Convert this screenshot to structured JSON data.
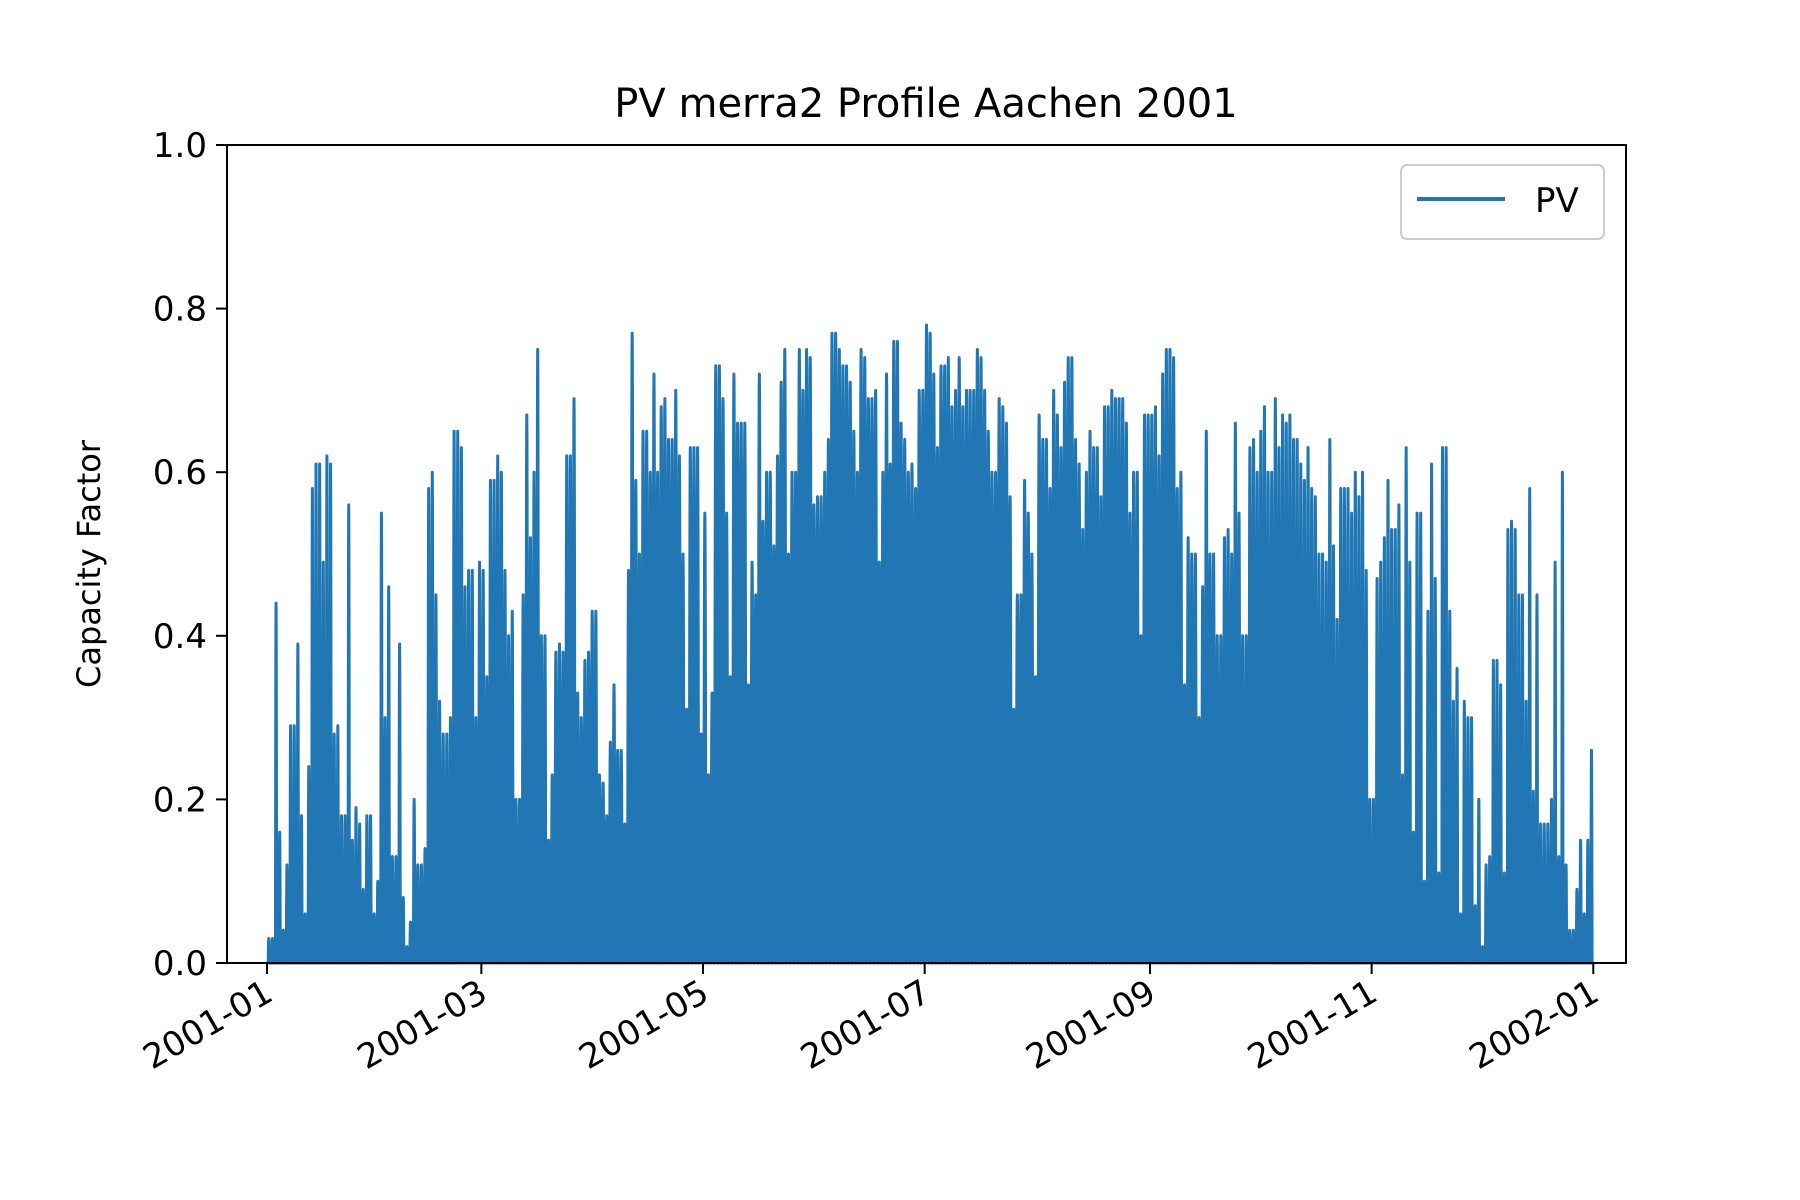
{
  "chart_data": {
    "type": "line",
    "title": "PV merra2 Profile Aachen 2001",
    "xlabel": "",
    "ylabel": "Capacity Factor",
    "ylim": [
      0,
      1.0
    ],
    "xlim": [
      "2000-12-21",
      "2002-01-10"
    ],
    "yticks": [
      "0.0",
      "0.2",
      "0.4",
      "0.6",
      "0.8",
      "1.0"
    ],
    "xticks": [
      "2001-01",
      "2001-03",
      "2001-05",
      "2001-07",
      "2001-09",
      "2001-11",
      "2002-01"
    ],
    "grid": false,
    "legend_position": "top-right",
    "series": [
      {
        "name": "PV",
        "color": "#2077b4",
        "description_of_values": "hourly capacity factor; daily peak values listed, zero at night",
        "daily_peaks": [
          0.03,
          0.44,
          0.16,
          0.04,
          0.12,
          0.29,
          0.39,
          0.18,
          0.06,
          0.24,
          0.58,
          0.61,
          0.49,
          0.62,
          0.61,
          0.28,
          0.29,
          0.18,
          0.56,
          0.15,
          0.19,
          0.17,
          0.09,
          0.18,
          0.06,
          0.1,
          0.55,
          0.3,
          0.46,
          0.13,
          0.39,
          0.08,
          0.02,
          0.05,
          0.2,
          0.12,
          0.14,
          0.58,
          0.6,
          0.45,
          0.32,
          0.28,
          0.3,
          0.65,
          0.65,
          0.63,
          0.46,
          0.48,
          0.3,
          0.49,
          0.48,
          0.35,
          0.59,
          0.62,
          0.6,
          0.48,
          0.4,
          0.43,
          0.2,
          0.45,
          0.67,
          0.52,
          0.6,
          0.75,
          0.4,
          0.15,
          0.23,
          0.38,
          0.39,
          0.38,
          0.62,
          0.69,
          0.33,
          0.3,
          0.37,
          0.38,
          0.43,
          0.23,
          0.22,
          0.18,
          0.27,
          0.34,
          0.26,
          0.17,
          0.48,
          0.77,
          0.59,
          0.5,
          0.65,
          0.6,
          0.72,
          0.6,
          0.68,
          0.69,
          0.64,
          0.7,
          0.62,
          0.5,
          0.31,
          0.63,
          0.63,
          0.28,
          0.55,
          0.23,
          0.33,
          0.73,
          0.69,
          0.55,
          0.35,
          0.72,
          0.66,
          0.66,
          0.34,
          0.49,
          0.45,
          0.72,
          0.54,
          0.6,
          0.51,
          0.62,
          0.71,
          0.75,
          0.5,
          0.6,
          0.75,
          0.7,
          0.75,
          0.74,
          0.56,
          0.57,
          0.6,
          0.64,
          0.77,
          0.77,
          0.75,
          0.73,
          0.71,
          0.65,
          0.6,
          0.75,
          0.74,
          0.69,
          0.7,
          0.49,
          0.6,
          0.72,
          0.61,
          0.76,
          0.66,
          0.64,
          0.6,
          0.61,
          0.58,
          0.7,
          0.78,
          0.77,
          0.72,
          0.63,
          0.73,
          0.74,
          0.68,
          0.7,
          0.74,
          0.68,
          0.7,
          0.7,
          0.75,
          0.74,
          0.7,
          0.65,
          0.6,
          0.69,
          0.68,
          0.66,
          0.57,
          0.31,
          0.45,
          0.59,
          0.55,
          0.5,
          0.35,
          0.67,
          0.64,
          0.58,
          0.7,
          0.67,
          0.63,
          0.71,
          0.74,
          0.64,
          0.61,
          0.53,
          0.6,
          0.65,
          0.63,
          0.57,
          0.68,
          0.68,
          0.7,
          0.69,
          0.69,
          0.66,
          0.55,
          0.6,
          0.6,
          0.4,
          0.67,
          0.67,
          0.68,
          0.62,
          0.72,
          0.75,
          0.74,
          0.58,
          0.6,
          0.34,
          0.52,
          0.5,
          0.3,
          0.46,
          0.65,
          0.5,
          0.5,
          0.4,
          0.52,
          0.53,
          0.5,
          0.66,
          0.55,
          0.4,
          0.63,
          0.64,
          0.6,
          0.65,
          0.68,
          0.6,
          0.69,
          0.63,
          0.67,
          0.66,
          0.67,
          0.64,
          0.61,
          0.59,
          0.63,
          0.58,
          0.57,
          0.5,
          0.49,
          0.64,
          0.51,
          0.42,
          0.58,
          0.58,
          0.55,
          0.6,
          0.57,
          0.6,
          0.48,
          0.2,
          0.47,
          0.49,
          0.52,
          0.59,
          0.53,
          0.56,
          0.23,
          0.63,
          0.49,
          0.16,
          0.55,
          0.1,
          0.43,
          0.61,
          0.47,
          0.11,
          0.63,
          0.43,
          0.32,
          0.36,
          0.06,
          0.32,
          0.3,
          0.07,
          0.2,
          0.02,
          0.12,
          0.13,
          0.37,
          0.34,
          0.11,
          0.53,
          0.54,
          0.53,
          0.45,
          0.32,
          0.58,
          0.21,
          0.45,
          0.17,
          0.17,
          0.2,
          0.49,
          0.13,
          0.6,
          0.12,
          0.04,
          0.09,
          0.15,
          0.06,
          0.15,
          0.26
        ]
      }
    ]
  }
}
